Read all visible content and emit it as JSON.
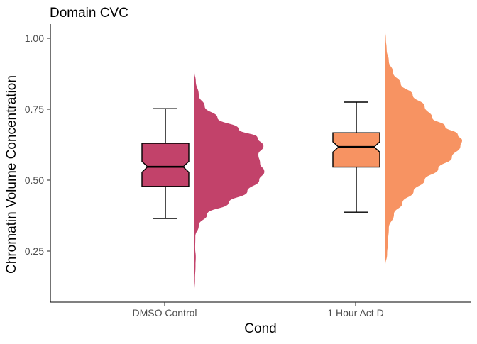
{
  "chart_data": {
    "type": "box",
    "title": "Domain CVC",
    "xlabel": "Cond",
    "ylabel": "Chromatin Volume Concentration",
    "ylim": [
      0.07,
      1.05
    ],
    "yticks": [
      "0.25",
      "0.50",
      "0.75",
      "1.00"
    ],
    "ytick_values": [
      0.25,
      0.5,
      0.75,
      1.0
    ],
    "grid": false,
    "legend": "none",
    "categories": [
      "DMSO Control",
      "1 Hour Act D"
    ],
    "series": [
      {
        "category": "DMSO Control",
        "color": "#C2426A",
        "box": {
          "min": 0.365,
          "q1": 0.478,
          "median": 0.547,
          "q3": 0.63,
          "max": 0.752
        },
        "notch": [
          0.528,
          0.566
        ],
        "density": [
          [
            0.11,
            0.0
          ],
          [
            0.15,
            0.006
          ],
          [
            0.2,
            0.012
          ],
          [
            0.23,
            0.015
          ],
          [
            0.26,
            0.008
          ],
          [
            0.3,
            0.01
          ],
          [
            0.34,
            0.05
          ],
          [
            0.38,
            0.15
          ],
          [
            0.42,
            0.4
          ],
          [
            0.46,
            0.62
          ],
          [
            0.5,
            0.76
          ],
          [
            0.53,
            0.82
          ],
          [
            0.56,
            0.77
          ],
          [
            0.59,
            0.75
          ],
          [
            0.62,
            0.81
          ],
          [
            0.65,
            0.74
          ],
          [
            0.68,
            0.52
          ],
          [
            0.72,
            0.27
          ],
          [
            0.76,
            0.12
          ],
          [
            0.8,
            0.05
          ],
          [
            0.85,
            0.015
          ],
          [
            0.88,
            0.0
          ]
        ]
      },
      {
        "category": "1 Hour Act D",
        "color": "#F79362",
        "box": {
          "min": 0.387,
          "q1": 0.546,
          "median": 0.617,
          "q3": 0.667,
          "max": 0.775
        },
        "notch": [
          0.599,
          0.635
        ],
        "density": [
          [
            0.2,
            0.0
          ],
          [
            0.24,
            0.02
          ],
          [
            0.28,
            0.03
          ],
          [
            0.33,
            0.04
          ],
          [
            0.38,
            0.1
          ],
          [
            0.42,
            0.2
          ],
          [
            0.46,
            0.33
          ],
          [
            0.5,
            0.46
          ],
          [
            0.54,
            0.62
          ],
          [
            0.58,
            0.78
          ],
          [
            0.62,
            0.88
          ],
          [
            0.64,
            0.9
          ],
          [
            0.66,
            0.85
          ],
          [
            0.69,
            0.7
          ],
          [
            0.72,
            0.55
          ],
          [
            0.76,
            0.46
          ],
          [
            0.8,
            0.32
          ],
          [
            0.84,
            0.18
          ],
          [
            0.88,
            0.09
          ],
          [
            0.92,
            0.04
          ],
          [
            0.96,
            0.015
          ],
          [
            1.0,
            0.005
          ],
          [
            1.02,
            0.0
          ]
        ]
      }
    ]
  }
}
